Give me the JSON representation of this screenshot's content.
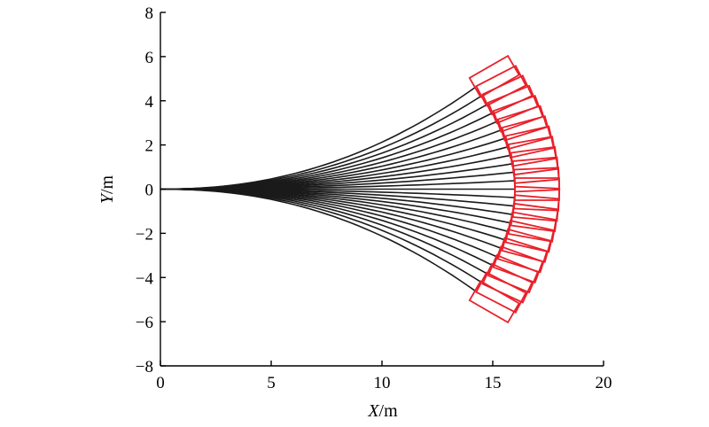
{
  "chart_data": {
    "type": "line",
    "title": "",
    "xlabel_var": "X",
    "xlabel_unit": "/m",
    "ylabel_var": "Y",
    "ylabel_unit": "/m",
    "xlim": [
      0,
      20
    ],
    "ylim": [
      -8,
      8
    ],
    "x_ticks": [
      "0",
      "5",
      "10",
      "15",
      "20"
    ],
    "y_ticks": [
      "8",
      "6",
      "4",
      "2",
      "0",
      "−2",
      "−4",
      "−6",
      "−8"
    ],
    "grid": false,
    "legend": "none",
    "trajectory_color": "#1a1a1a",
    "box_color": "#e8212b",
    "trajectories": {
      "count": 25,
      "start": [
        0,
        0
      ],
      "end_y_range": [
        -4.6,
        4.6
      ],
      "x_end_at_center": 16.0,
      "x_end_at_edge": 14.2,
      "curvature_exponent": 2.2
    },
    "terminal_boxes": {
      "shape": "rectangle",
      "length_m": 2.0,
      "width_m": 1.0,
      "heading_max_deg": 30
    }
  }
}
